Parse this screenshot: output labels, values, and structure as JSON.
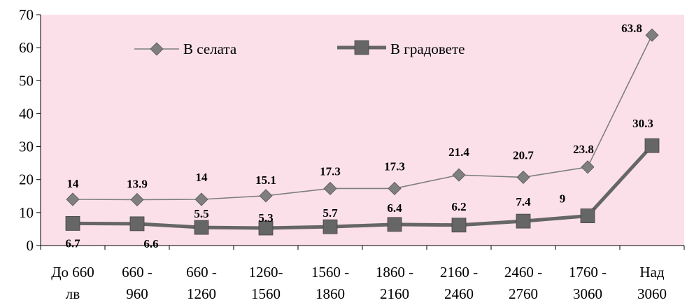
{
  "chart_data": {
    "type": "line",
    "categories": [
      [
        "До 660",
        "лв"
      ],
      [
        "660 -",
        "960"
      ],
      [
        "660 -",
        "1260"
      ],
      [
        "1260-",
        "1560"
      ],
      [
        "1560 -",
        "1860"
      ],
      [
        "1860 -",
        "2160"
      ],
      [
        "2160 -",
        "2460"
      ],
      [
        "2460 -",
        "2760"
      ],
      [
        "1760 -",
        "3060"
      ],
      [
        "Над",
        "3060"
      ]
    ],
    "series": [
      {
        "name": "В селата",
        "marker": "diamond",
        "color": "#7f7f7f",
        "values": [
          14,
          13.9,
          14,
          15.1,
          17.3,
          17.3,
          21.4,
          20.7,
          23.8,
          63.8
        ],
        "labels": [
          "14",
          "13.9",
          "14",
          "15.1",
          "17.3",
          "17.3",
          "21.4",
          "20.7",
          "23.8",
          "63.8"
        ]
      },
      {
        "name": "В градовете",
        "marker": "square",
        "color": "#666666",
        "values": [
          6.7,
          6.6,
          5.5,
          5.3,
          5.7,
          6.4,
          6.2,
          7.4,
          9,
          30.3
        ],
        "labels": [
          "6.7",
          "6.6",
          "5.5",
          "5.3",
          "5.7",
          "6.4",
          "6.2",
          "7.4",
          "9",
          "30.3"
        ]
      }
    ],
    "ylim": [
      0,
      70
    ],
    "yticks": [
      0,
      10,
      20,
      30,
      40,
      50,
      60,
      70
    ],
    "title": "",
    "xlabel": "",
    "ylabel": "",
    "grid": false,
    "legend_position": "top-left",
    "plot_background": "#fbe0ea"
  }
}
